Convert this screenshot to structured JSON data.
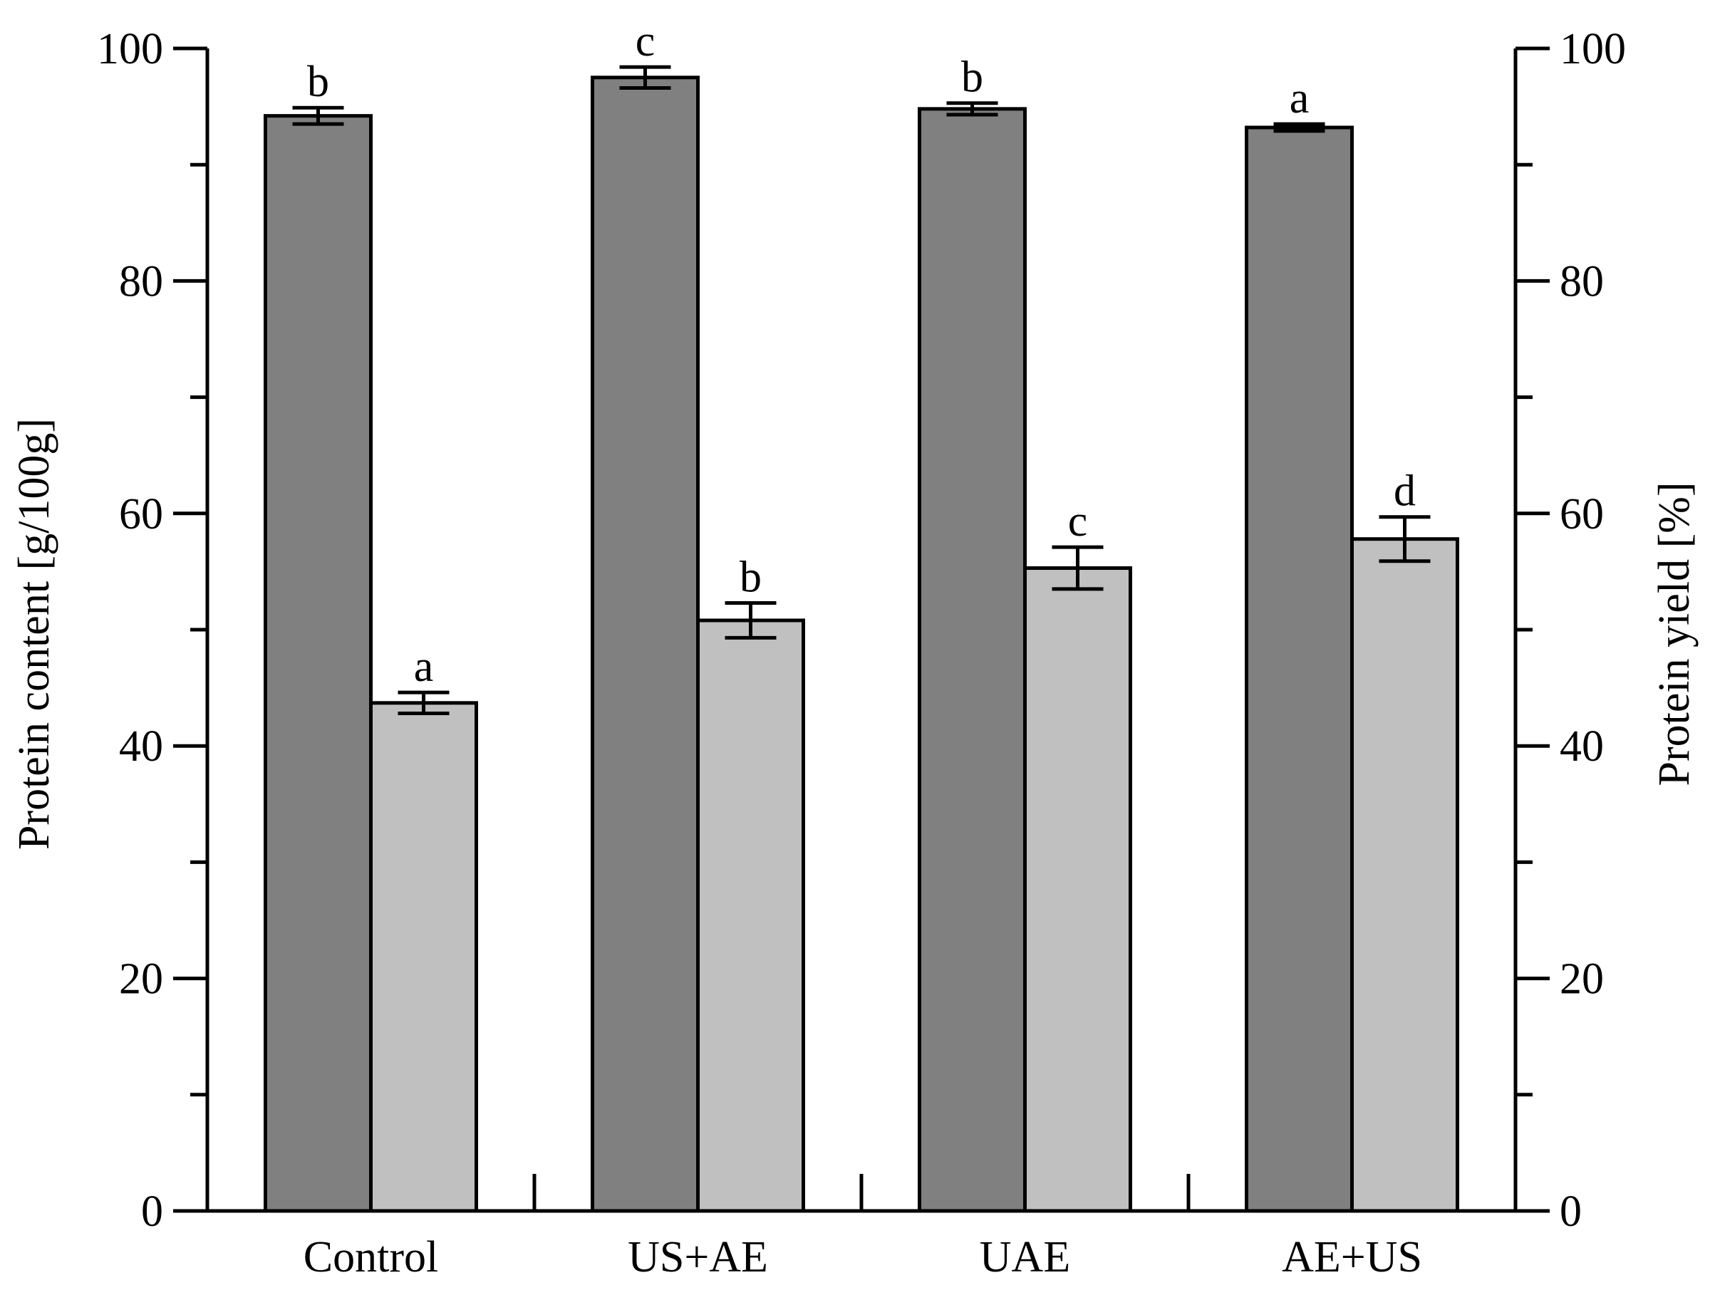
{
  "chart_data": {
    "type": "bar",
    "title": "",
    "categories": [
      "Control",
      "US+AE",
      "UAE",
      "AE+US"
    ],
    "series": [
      {
        "name": "Protein content",
        "axis": "left",
        "color": "#808080",
        "values": [
          94.2,
          97.5,
          94.8,
          93.2
        ],
        "errors": [
          0.7,
          0.9,
          0.5,
          0.3
        ],
        "letters": [
          "b",
          "c",
          "b",
          "a"
        ]
      },
      {
        "name": "Protein yield",
        "axis": "right",
        "color": "#c0c0c0",
        "values": [
          43.7,
          50.8,
          55.3,
          57.8
        ],
        "errors": [
          0.9,
          1.5,
          1.8,
          1.9
        ],
        "letters": [
          "a",
          "b",
          "c",
          "d"
        ]
      }
    ],
    "ylabel": "Protein content [g/100g]",
    "y2label": "Protein yield [%]",
    "ylim": [
      0,
      100
    ],
    "y2lim": [
      0,
      100
    ],
    "yticks": [
      0,
      20,
      40,
      60,
      80,
      100
    ],
    "y2ticks": [
      0,
      20,
      40,
      60,
      80,
      100
    ],
    "minor_step": 10,
    "grid": false,
    "legend": "none"
  }
}
